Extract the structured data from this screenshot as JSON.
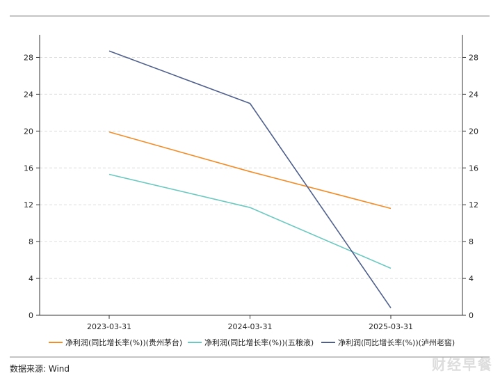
{
  "chart_data": {
    "type": "line",
    "categories": [
      "2023-03-31",
      "2024-03-31",
      "2025-03-31"
    ],
    "ylim": [
      0,
      30
    ],
    "yticks": [
      0,
      4,
      8,
      12,
      16,
      20,
      24,
      28
    ],
    "y2lim": [
      0,
      30
    ],
    "grid": "horizontal-dashed",
    "legend_position": "bottom",
    "series": [
      {
        "name": "净利润(同比增长率(%))(贵州茅台)",
        "color": "#f28c28",
        "values": [
          19.9,
          15.6,
          11.6
        ]
      },
      {
        "name": "净利润(同比增长率(%))(五粮液)",
        "color": "#6cc9c0",
        "values": [
          15.3,
          11.7,
          5.1
        ]
      },
      {
        "name": "净利润(同比增长率(%))(泸州老窖)",
        "color": "#4e5f8c",
        "values": [
          28.7,
          23.0,
          0.8
        ]
      }
    ]
  },
  "footer": {
    "source": "数据来源: Wind",
    "watermark": "财经早餐"
  }
}
